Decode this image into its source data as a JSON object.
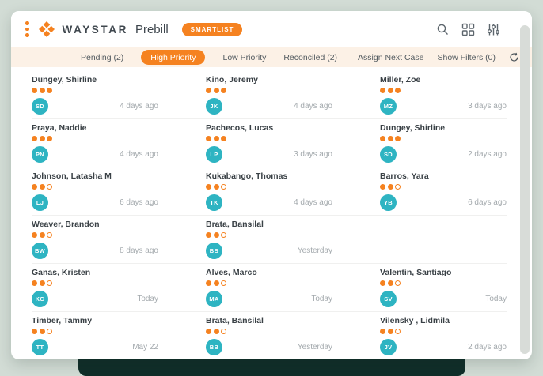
{
  "brand": {
    "wordmark": "WAYSTAR",
    "product": "Prebill",
    "badge": "SMARTLIST"
  },
  "colors": {
    "accent": "#f58220",
    "avatar_teal": "#2eb4c2",
    "tabbar_bg": "#fcf1e6",
    "stand_dark": "#102e29",
    "page_bg": "#d2dcd5"
  },
  "tabs": {
    "items": [
      {
        "label": "Pending (2)",
        "active": false
      },
      {
        "label": "High Priority",
        "active": true
      },
      {
        "label": "Low Priority",
        "active": false
      },
      {
        "label": "Reconciled (2)",
        "active": false
      }
    ],
    "assign_label": "Assign Next Case",
    "filters_label": "Show Filters (0)"
  },
  "cards": [
    {
      "name": "Dungey, Shirline",
      "initials": "SD",
      "dots_filled": 3,
      "dots_total": 3,
      "time": "4 days ago"
    },
    {
      "name": "Kino, Jeremy",
      "initials": "JK",
      "dots_filled": 3,
      "dots_total": 3,
      "time": "4 days ago"
    },
    {
      "name": "Miller, Zoe",
      "initials": "MZ",
      "dots_filled": 3,
      "dots_total": 3,
      "time": "3 days ago"
    },
    {
      "name": "Praya, Naddie",
      "initials": "PN",
      "dots_filled": 3,
      "dots_total": 3,
      "time": "4 days ago"
    },
    {
      "name": "Pachecos, Lucas",
      "initials": "LP",
      "dots_filled": 3,
      "dots_total": 3,
      "time": "3 days ago"
    },
    {
      "name": "Dungey, Shirline",
      "initials": "SD",
      "dots_filled": 3,
      "dots_total": 3,
      "time": "2 days ago"
    },
    {
      "name": "Johnson, Latasha M",
      "initials": "LJ",
      "dots_filled": 2,
      "dots_total": 3,
      "time": "6 days ago"
    },
    {
      "name": "Kukabango, Thomas",
      "initials": "TK",
      "dots_filled": 2,
      "dots_total": 3,
      "time": "4 days ago"
    },
    {
      "name": "Barros, Yara",
      "initials": "YB",
      "dots_filled": 2,
      "dots_total": 3,
      "time": "6 days ago"
    },
    {
      "name": "Weaver, Brandon",
      "initials": "BW",
      "dots_filled": 2,
      "dots_total": 3,
      "time": "8 days ago"
    },
    {
      "name": "Brata, Bansilal",
      "initials": "BB",
      "dots_filled": 2,
      "dots_total": 3,
      "time": "Yesterday"
    },
    {
      "empty": true
    },
    {
      "name": "Ganas, Kristen",
      "initials": "KG",
      "dots_filled": 2,
      "dots_total": 3,
      "time": "Today"
    },
    {
      "name": "Alves, Marco",
      "initials": "MA",
      "dots_filled": 2,
      "dots_total": 3,
      "time": "Today"
    },
    {
      "name": "Valentin, Santiago",
      "initials": "SV",
      "dots_filled": 2,
      "dots_total": 3,
      "time": "Today"
    },
    {
      "name": "Timber, Tammy",
      "initials": "TT",
      "dots_filled": 2,
      "dots_total": 3,
      "time": "May 22"
    },
    {
      "name": "Brata, Bansilal",
      "initials": "BB",
      "dots_filled": 2,
      "dots_total": 3,
      "time": "Yesterday"
    },
    {
      "name": "Vilensky , Lidmila",
      "initials": "JV",
      "dots_filled": 2,
      "dots_total": 3,
      "time": "2 days ago"
    }
  ]
}
